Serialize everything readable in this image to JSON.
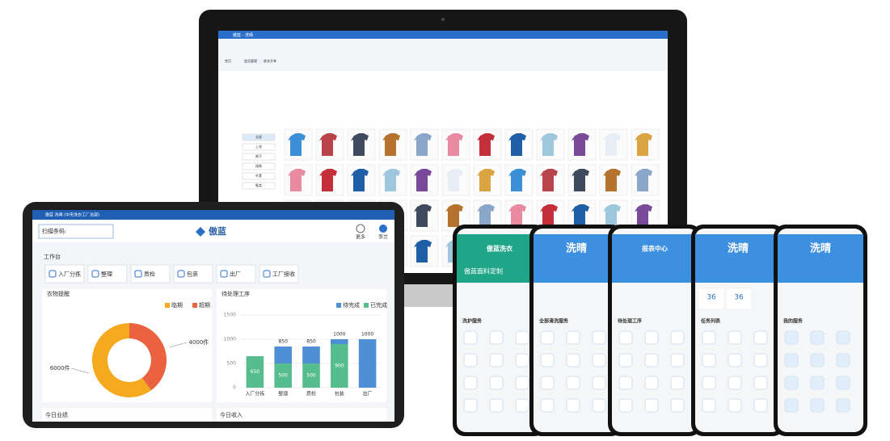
{
  "monitor": {
    "app_title": "傲蓝 - 洗晴",
    "tabs": [
      "首页",
      "会员管理",
      "收衣开单"
    ],
    "categories": [
      "全部",
      "上衣",
      "裤子",
      "裙装",
      "外套",
      "鞋类"
    ]
  },
  "tablet": {
    "window_title": "傲蓝 洗晴 (中央洗衣工厂总部)",
    "brand": "傲蓝",
    "scan_label": "扫描条码:",
    "more": "更多",
    "user": "李兰",
    "section": "工作台",
    "actions": [
      "入厂分拣",
      "整理",
      "质检",
      "包装",
      "出厂",
      "工厂接收"
    ],
    "footer": [
      "今日业绩",
      "今日收入"
    ]
  },
  "chart_data": [
    {
      "type": "pie",
      "title": "衣物提醒",
      "donut": true,
      "legend": "top-right",
      "categories": [
        "临期",
        "超期"
      ],
      "values": [
        6000,
        4000
      ],
      "value_labels": [
        "6000件",
        "4000件"
      ],
      "colors": [
        "#f5a91f",
        "#ea6240"
      ]
    },
    {
      "type": "bar",
      "stacked": true,
      "title": "待处理工序",
      "legend": "top-right",
      "grid": true,
      "categories": [
        "入厂分拣",
        "整理",
        "质检",
        "包装",
        "出厂"
      ],
      "series": [
        {
          "name": "已完成",
          "color": "#56bd8f",
          "values": [
            650,
            500,
            500,
            900,
            0
          ]
        },
        {
          "name": "待完成",
          "color": "#4e8fd6",
          "values": [
            0,
            350,
            350,
            100,
            1000
          ]
        }
      ],
      "totals": [
        null,
        850,
        850,
        1000,
        1000
      ],
      "ylim": [
        0,
        1500
      ],
      "yticks": [
        0,
        500,
        1000,
        1500
      ]
    }
  ],
  "phones": [
    {
      "title": "傲蓝洗衣",
      "banner": "傲蓝面料定制",
      "section": "洗护服务"
    },
    {
      "title": "洗晴",
      "section": "全部清洗服务"
    },
    {
      "title": "报表中心",
      "section": "待处理工序"
    },
    {
      "title": "洗晴",
      "stats": [
        "36",
        "36"
      ],
      "section": "任务列表"
    },
    {
      "title": "洗晴",
      "section": "我的服务"
    }
  ]
}
